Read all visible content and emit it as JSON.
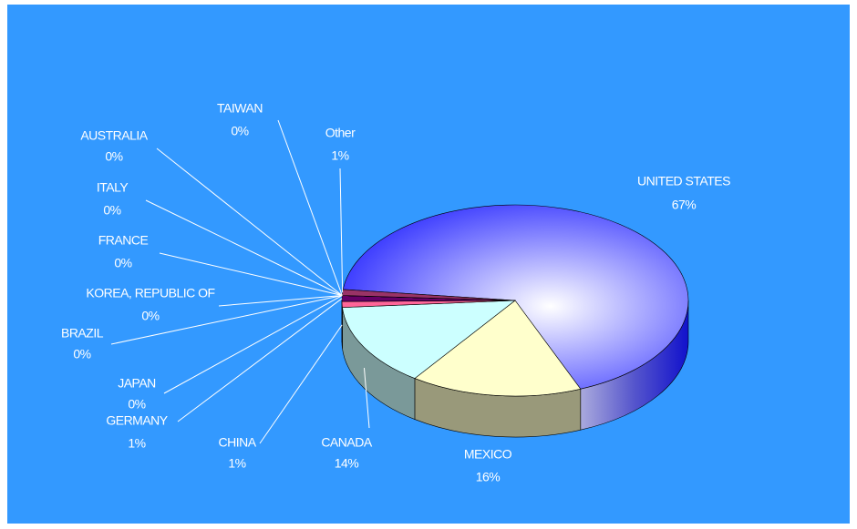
{
  "chart_data": {
    "type": "pie",
    "categories": [
      "UNITED STATES",
      "MEXICO",
      "CANADA",
      "CHINA",
      "GERMANY",
      "JAPAN",
      "BRAZIL",
      "KOREA, REPUBLIC OF",
      "FRANCE",
      "ITALY",
      "AUSTRALIA",
      "TAIWAN",
      "Other"
    ],
    "values": [
      67,
      16,
      14,
      1,
      1,
      0,
      0,
      0,
      0,
      0,
      0,
      0,
      1
    ],
    "value_labels": [
      "67%",
      "16%",
      "14%",
      "1%",
      "1%",
      "0%",
      "0%",
      "0%",
      "0%",
      "0%",
      "0%",
      "0%",
      "1%"
    ],
    "colors": [
      "#3333ff",
      "#ffffcc",
      "#ccffff",
      "#ff6699",
      "#660066",
      "#ff8080",
      "#0066cc",
      "#ccccff",
      "#000080",
      "#ff00ff",
      "#ffff00",
      "#00ffff",
      "#993366"
    ]
  }
}
